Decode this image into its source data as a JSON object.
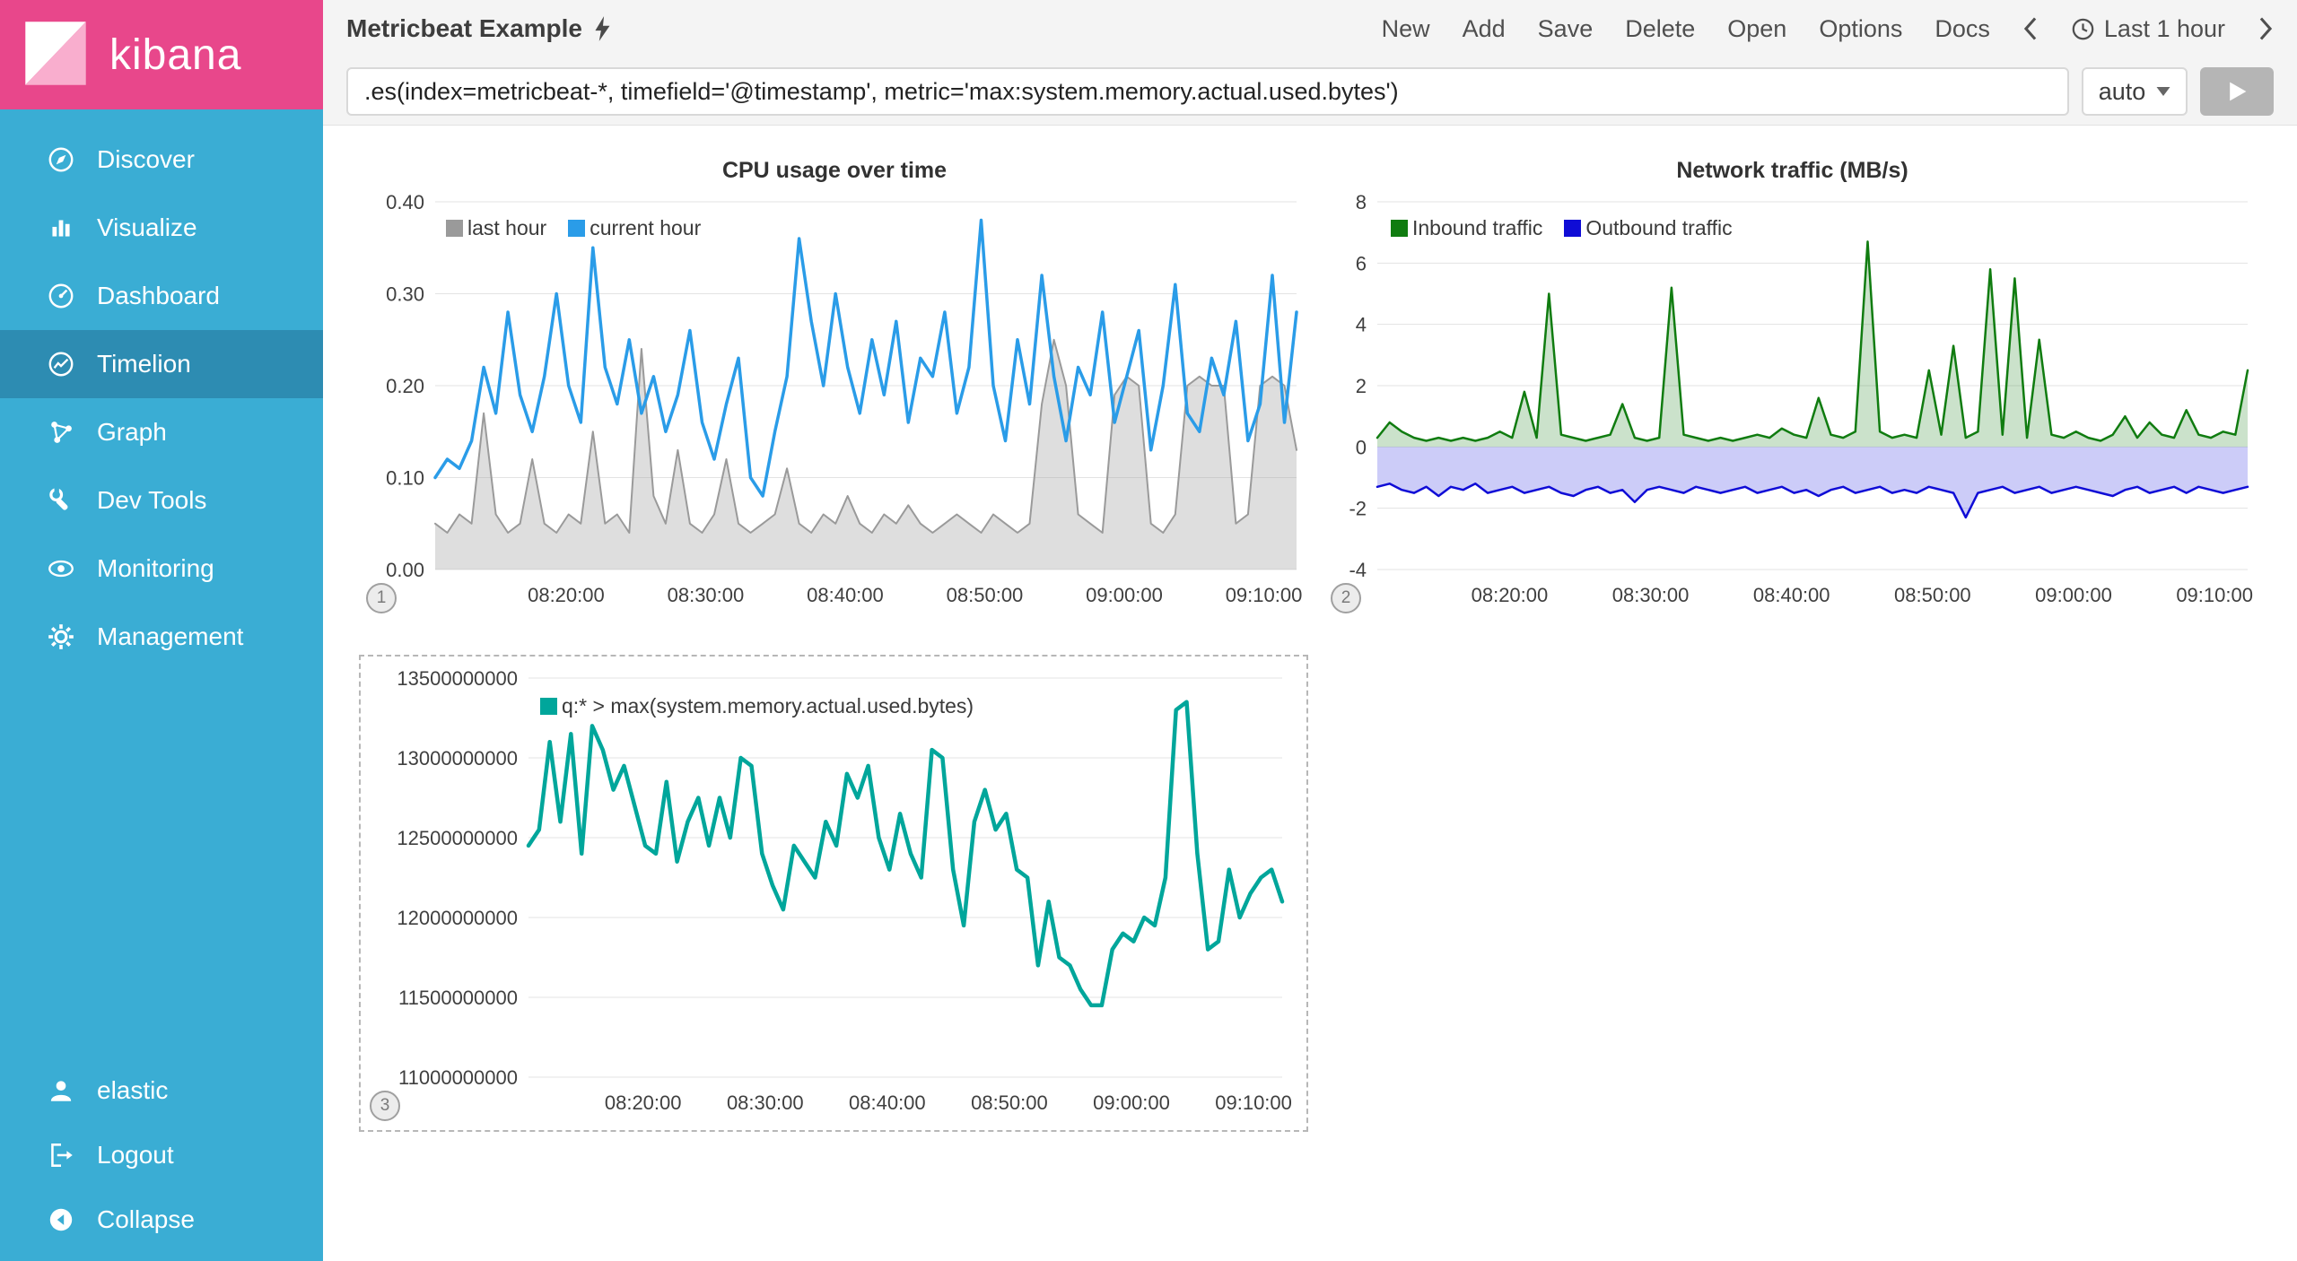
{
  "app": {
    "logo_text": "kibana"
  },
  "sidebar": {
    "items": [
      {
        "label": "Discover"
      },
      {
        "label": "Visualize"
      },
      {
        "label": "Dashboard"
      },
      {
        "label": "Timelion",
        "active": true
      },
      {
        "label": "Graph"
      },
      {
        "label": "Dev Tools"
      },
      {
        "label": "Monitoring"
      },
      {
        "label": "Management"
      }
    ],
    "footer": [
      {
        "label": "elastic"
      },
      {
        "label": "Logout"
      },
      {
        "label": "Collapse"
      }
    ]
  },
  "topbar": {
    "title": "Metricbeat Example",
    "menu": [
      "New",
      "Add",
      "Save",
      "Delete",
      "Open",
      "Options",
      "Docs"
    ],
    "time_picker": {
      "label": "Last 1 hour"
    }
  },
  "query": {
    "value": ".es(index=metricbeat-*, timefield='@timestamp', metric='max:system.memory.actual.used.bytes')",
    "interval": "auto"
  },
  "colors": {
    "brand_pink": "#E8478B",
    "sidebar_teal": "#3AADD4",
    "sidebar_active": "#2D8CB2",
    "cpu_last_hour": "#9a9a9a",
    "cpu_current_hour": "#2a9ce8",
    "inbound_green": "#107c10",
    "outbound_blue": "#0f0cd6",
    "memory_teal": "#00a69b"
  },
  "chart_data": [
    {
      "type": "line",
      "title": "CPU usage over time",
      "badge": "1",
      "legend": [
        {
          "label": "last hour",
          "color": "#9a9a9a"
        },
        {
          "label": "current hour",
          "color": "#2a9ce8"
        }
      ],
      "y_min": 0,
      "y_max": 0.4,
      "y_ticks": [
        0,
        0.1,
        0.2,
        0.3,
        0.4
      ],
      "y_tick_labels": [
        "0.00",
        "0.10",
        "0.20",
        "0.30",
        "0.40"
      ],
      "x_ticks": [
        {
          "pos": 0.152,
          "label": "08:20:00"
        },
        {
          "pos": 0.314,
          "label": "08:30:00"
        },
        {
          "pos": 0.476,
          "label": "08:40:00"
        },
        {
          "pos": 0.638,
          "label": "08:50:00"
        },
        {
          "pos": 0.8,
          "label": "09:00:00"
        },
        {
          "pos": 0.962,
          "label": "09:10:00"
        }
      ],
      "series": [
        {
          "name": "last hour",
          "color": "#9a9a9a",
          "width": 2,
          "fill": "rgba(160,160,160,0.35)",
          "fill_to": 0,
          "values": [
            0.05,
            0.04,
            0.06,
            0.05,
            0.17,
            0.06,
            0.04,
            0.05,
            0.12,
            0.05,
            0.04,
            0.06,
            0.05,
            0.15,
            0.05,
            0.06,
            0.04,
            0.24,
            0.08,
            0.05,
            0.13,
            0.05,
            0.04,
            0.06,
            0.12,
            0.05,
            0.04,
            0.05,
            0.06,
            0.11,
            0.05,
            0.04,
            0.06,
            0.05,
            0.08,
            0.05,
            0.04,
            0.06,
            0.05,
            0.07,
            0.05,
            0.04,
            0.05,
            0.06,
            0.05,
            0.04,
            0.06,
            0.05,
            0.04,
            0.05,
            0.18,
            0.25,
            0.2,
            0.06,
            0.05,
            0.04,
            0.19,
            0.21,
            0.2,
            0.05,
            0.04,
            0.06,
            0.2,
            0.21,
            0.2,
            0.2,
            0.05,
            0.06,
            0.2,
            0.21,
            0.2,
            0.13
          ]
        },
        {
          "name": "current hour",
          "color": "#2a9ce8",
          "width": 3.5,
          "values": [
            0.1,
            0.12,
            0.11,
            0.14,
            0.22,
            0.17,
            0.28,
            0.19,
            0.15,
            0.21,
            0.3,
            0.2,
            0.16,
            0.35,
            0.22,
            0.18,
            0.25,
            0.17,
            0.21,
            0.15,
            0.19,
            0.26,
            0.16,
            0.12,
            0.18,
            0.23,
            0.1,
            0.08,
            0.15,
            0.21,
            0.36,
            0.27,
            0.2,
            0.3,
            0.22,
            0.17,
            0.25,
            0.19,
            0.27,
            0.16,
            0.23,
            0.21,
            0.28,
            0.17,
            0.22,
            0.38,
            0.2,
            0.14,
            0.25,
            0.18,
            0.32,
            0.21,
            0.14,
            0.22,
            0.19,
            0.28,
            0.16,
            0.21,
            0.26,
            0.13,
            0.2,
            0.31,
            0.17,
            0.15,
            0.23,
            0.19,
            0.27,
            0.14,
            0.18,
            0.32,
            0.16,
            0.28
          ]
        }
      ]
    },
    {
      "type": "line",
      "title": "Network traffic (MB/s)",
      "badge": "2",
      "legend": [
        {
          "label": "Inbound traffic",
          "color": "#107c10"
        },
        {
          "label": "Outbound traffic",
          "color": "#0f0cd6"
        }
      ],
      "y_min": -4,
      "y_max": 8,
      "y_ticks": [
        -4,
        -2,
        0,
        2,
        4,
        6,
        8
      ],
      "y_tick_labels": [
        "-4",
        "-2",
        "0",
        "2",
        "4",
        "6",
        "8"
      ],
      "x_ticks": [
        {
          "pos": 0.152,
          "label": "08:20:00"
        },
        {
          "pos": 0.314,
          "label": "08:30:00"
        },
        {
          "pos": 0.476,
          "label": "08:40:00"
        },
        {
          "pos": 0.638,
          "label": "08:50:00"
        },
        {
          "pos": 0.8,
          "label": "09:00:00"
        },
        {
          "pos": 0.962,
          "label": "09:10:00"
        }
      ],
      "series": [
        {
          "name": "Inbound traffic",
          "color": "#107c10",
          "width": 2.5,
          "fill": "rgba(16,124,16,0.22)",
          "fill_to": 0,
          "values": [
            0.3,
            0.8,
            0.5,
            0.3,
            0.2,
            0.3,
            0.2,
            0.3,
            0.2,
            0.3,
            0.5,
            0.3,
            1.8,
            0.3,
            5.0,
            0.4,
            0.3,
            0.2,
            0.3,
            0.4,
            1.4,
            0.3,
            0.2,
            0.3,
            5.2,
            0.4,
            0.3,
            0.2,
            0.3,
            0.2,
            0.3,
            0.4,
            0.3,
            0.6,
            0.4,
            0.3,
            1.6,
            0.4,
            0.3,
            0.5,
            6.7,
            0.5,
            0.3,
            0.4,
            0.3,
            2.5,
            0.4,
            3.3,
            0.3,
            0.5,
            5.8,
            0.4,
            5.5,
            0.3,
            3.5,
            0.4,
            0.3,
            0.5,
            0.3,
            0.2,
            0.4,
            1.0,
            0.3,
            0.8,
            0.4,
            0.3,
            1.2,
            0.4,
            0.3,
            0.5,
            0.4,
            2.5
          ]
        },
        {
          "name": "Outbound traffic",
          "color": "#0f0cd6",
          "width": 2.5,
          "fill": "rgba(110,110,235,0.35)",
          "fill_to": 0,
          "values": [
            -1.3,
            -1.2,
            -1.4,
            -1.5,
            -1.3,
            -1.6,
            -1.3,
            -1.4,
            -1.2,
            -1.5,
            -1.4,
            -1.3,
            -1.5,
            -1.4,
            -1.3,
            -1.5,
            -1.6,
            -1.4,
            -1.3,
            -1.5,
            -1.4,
            -1.8,
            -1.4,
            -1.3,
            -1.4,
            -1.5,
            -1.3,
            -1.4,
            -1.5,
            -1.4,
            -1.3,
            -1.5,
            -1.4,
            -1.3,
            -1.5,
            -1.4,
            -1.6,
            -1.4,
            -1.3,
            -1.5,
            -1.4,
            -1.3,
            -1.5,
            -1.4,
            -1.5,
            -1.3,
            -1.4,
            -1.5,
            -2.3,
            -1.5,
            -1.4,
            -1.3,
            -1.5,
            -1.4,
            -1.3,
            -1.5,
            -1.4,
            -1.3,
            -1.4,
            -1.5,
            -1.6,
            -1.4,
            -1.3,
            -1.5,
            -1.4,
            -1.3,
            -1.5,
            -1.3,
            -1.4,
            -1.5,
            -1.4,
            -1.3
          ]
        }
      ]
    },
    {
      "type": "line",
      "title": "",
      "badge": "3",
      "selected": true,
      "legend": [
        {
          "label": "q:* > max(system.memory.actual.used.bytes)",
          "color": "#00a69b"
        }
      ],
      "y_min": 11,
      "y_max": 13.5,
      "y_ticks": [
        11,
        11.5,
        12,
        12.5,
        13,
        13.5
      ],
      "y_tick_labels": [
        "11000000000",
        "11500000000",
        "12000000000",
        "12500000000",
        "13000000000",
        "13500000000"
      ],
      "x_ticks": [
        {
          "pos": 0.152,
          "label": "08:20:00"
        },
        {
          "pos": 0.314,
          "label": "08:30:00"
        },
        {
          "pos": 0.476,
          "label": "08:40:00"
        },
        {
          "pos": 0.638,
          "label": "08:50:00"
        },
        {
          "pos": 0.8,
          "label": "09:00:00"
        },
        {
          "pos": 0.962,
          "label": "09:10:00"
        }
      ],
      "series": [
        {
          "name": "q:* > max(system.memory.actual.used.bytes)",
          "color": "#00a69b",
          "width": 4.5,
          "values": [
            12.45,
            12.55,
            13.1,
            12.6,
            13.15,
            12.4,
            13.2,
            13.05,
            12.8,
            12.95,
            12.7,
            12.45,
            12.4,
            12.85,
            12.35,
            12.6,
            12.75,
            12.45,
            12.75,
            12.5,
            13.0,
            12.95,
            12.4,
            12.2,
            12.05,
            12.45,
            12.35,
            12.25,
            12.6,
            12.45,
            12.9,
            12.75,
            12.95,
            12.5,
            12.3,
            12.65,
            12.4,
            12.25,
            13.05,
            13.0,
            12.3,
            11.95,
            12.6,
            12.8,
            12.55,
            12.65,
            12.3,
            12.25,
            11.7,
            12.1,
            11.75,
            11.7,
            11.55,
            11.45,
            11.45,
            11.8,
            11.9,
            11.85,
            12.0,
            11.95,
            12.25,
            13.3,
            13.35,
            12.4,
            11.8,
            11.85,
            12.3,
            12.0,
            12.15,
            12.25,
            12.3,
            12.1
          ]
        }
      ]
    }
  ]
}
